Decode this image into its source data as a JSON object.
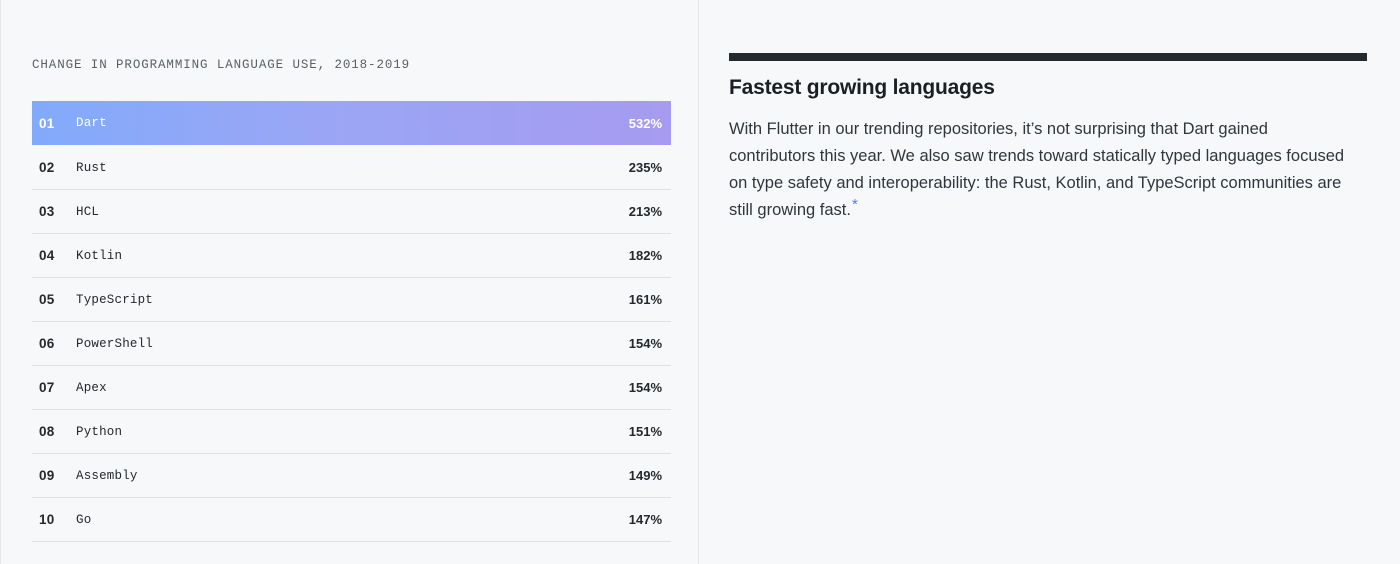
{
  "left": {
    "heading": "CHANGE IN PROGRAMMING LANGUAGE USE, 2018-2019",
    "rows": [
      {
        "rank": "01",
        "language": "Dart",
        "change": "532%"
      },
      {
        "rank": "02",
        "language": "Rust",
        "change": "235%"
      },
      {
        "rank": "03",
        "language": "HCL",
        "change": "213%"
      },
      {
        "rank": "04",
        "language": "Kotlin",
        "change": "182%"
      },
      {
        "rank": "05",
        "language": "TypeScript",
        "change": "161%"
      },
      {
        "rank": "06",
        "language": "PowerShell",
        "change": "154%"
      },
      {
        "rank": "07",
        "language": "Apex",
        "change": "154%"
      },
      {
        "rank": "08",
        "language": "Python",
        "change": "151%"
      },
      {
        "rank": "09",
        "language": "Assembly",
        "change": "149%"
      },
      {
        "rank": "10",
        "language": "Go",
        "change": "147%"
      }
    ]
  },
  "right": {
    "title": "Fastest growing languages",
    "body": "With Flutter in our trending repositories, it’s not surprising that Dart gained contributors this year. We also saw trends toward statically typed languages focused on type safety and interoperability: the Rust, Kotlin, and TypeScript communities are still growing fast.",
    "footnote": "*"
  },
  "colors": {
    "highlight_start": "#82aafa",
    "highlight_end": "#a69bf0",
    "footnote_link": "#4a7ff0",
    "rule": "#24292e"
  }
}
